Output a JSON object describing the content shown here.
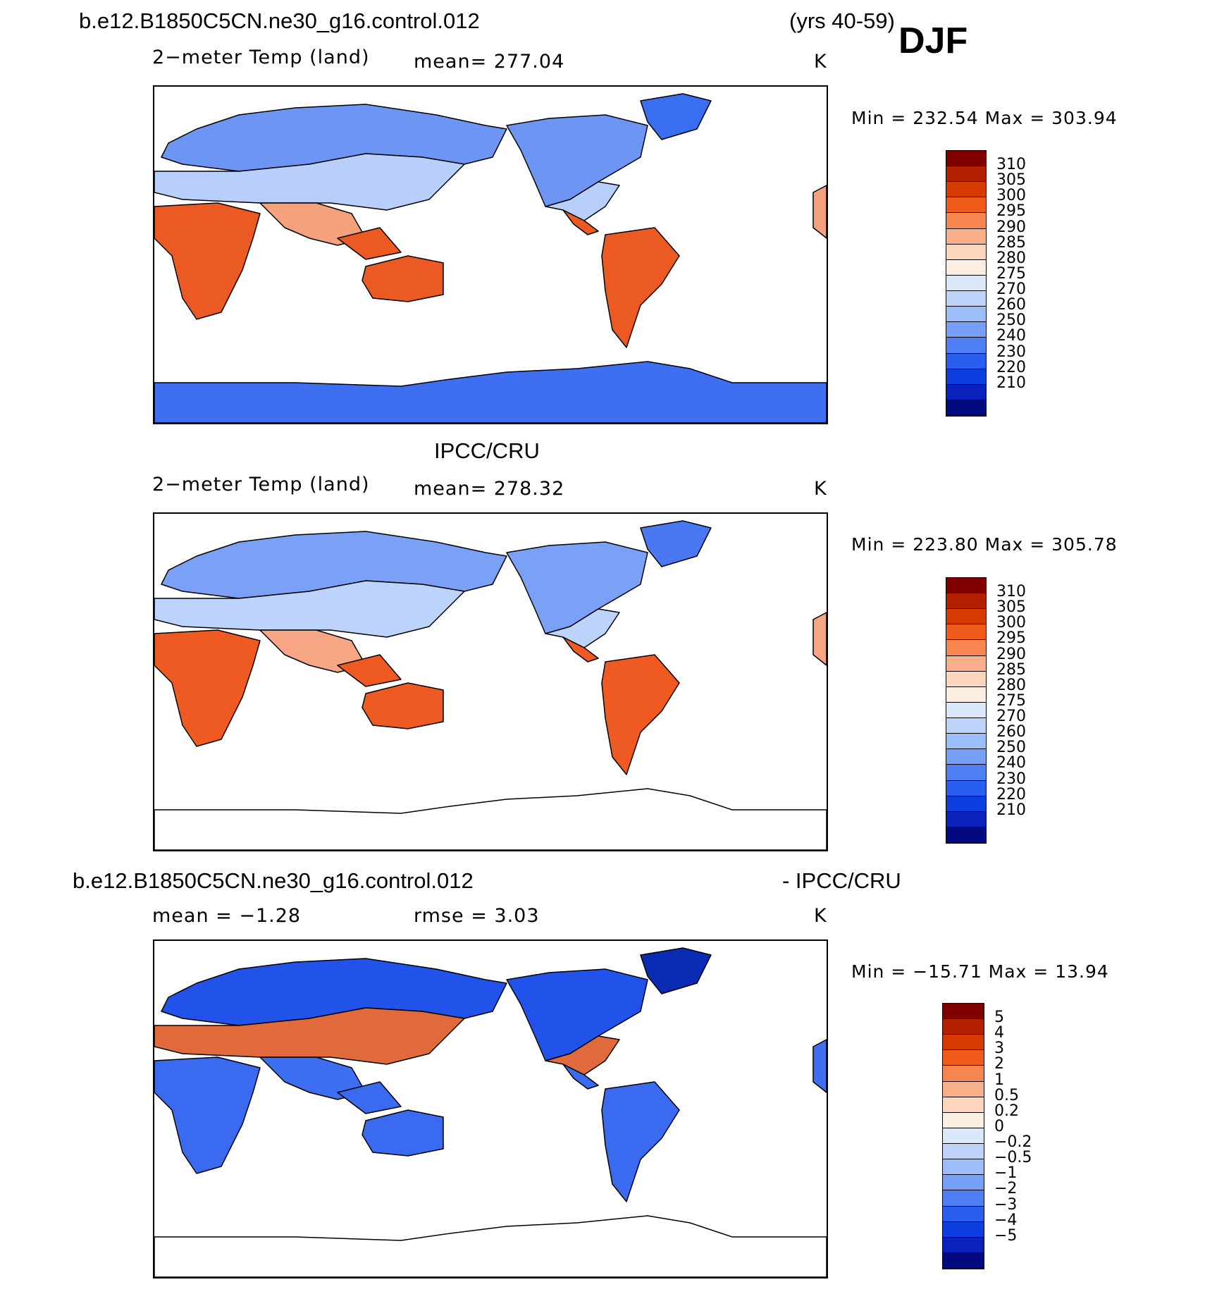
{
  "header": {
    "case_name": "b.e12.B1850C5CN.ne30_g16.control.012",
    "years": "(yrs 40-59)",
    "season": "DJF"
  },
  "panels": [
    {
      "id": "model",
      "title": "",
      "variable": "2−meter Temp (land)",
      "stat": "mean=  277.04",
      "units": "K",
      "minmax": "Min  =  232.54  Max  =  303.94",
      "palette": "abs"
    },
    {
      "id": "obs",
      "title": "IPCC/CRU",
      "variable": "2−meter Temp (land)",
      "stat": "mean=  278.32",
      "units": "K",
      "minmax": "Min  =  223.80  Max  =  305.78",
      "palette": "abs"
    },
    {
      "id": "diff",
      "title_left": "b.e12.B1850C5CN.ne30_g16.control.012",
      "title_right": "- IPCC/CRU",
      "variable": "mean  =    −1.28",
      "stat": "rmse  =      3.03",
      "units": "K",
      "minmax": "Min  =  −15.71  Max  =      13.94",
      "palette": "diff"
    }
  ],
  "colorbars": {
    "abs": {
      "colors": [
        "#800000",
        "#b22000",
        "#d63a00",
        "#f05a1a",
        "#f78550",
        "#f9b08a",
        "#fdd5bd",
        "#fdeee2",
        "#dbe8fa",
        "#bdd3fa",
        "#9bbdfa",
        "#76a0f7",
        "#4e7ff5",
        "#2a5ef0",
        "#0f3ee0",
        "#0a22bb",
        "#020a80"
      ],
      "labels": [
        "310",
        "305",
        "300",
        "295",
        "290",
        "285",
        "280",
        "275",
        "270",
        "260",
        "250",
        "240",
        "230",
        "220",
        "210"
      ]
    },
    "diff": {
      "colors": [
        "#800000",
        "#b22000",
        "#d63a00",
        "#f05a1a",
        "#f78550",
        "#f9b08a",
        "#fdd5bd",
        "#fdeee2",
        "#dbe8fa",
        "#bdd3fa",
        "#9bbdfa",
        "#76a0f7",
        "#4e7ff5",
        "#2a5ef0",
        "#0f3ee0",
        "#0a22bb",
        "#020a80"
      ],
      "labels": [
        "5",
        "4",
        "3",
        "2",
        "1",
        "0.5",
        "0.2",
        "0",
        "−0.2",
        "−0.5",
        "−1",
        "−2",
        "−3",
        "−4",
        "−5"
      ]
    }
  },
  "map_fill": {
    "model": {
      "north": "#6c95f4",
      "mid": "#b7cffa",
      "subtrop": "#f5a17c",
      "tropics": "#ec5a24",
      "antarctic": "#3d6ff0",
      "greenland": "#3a6ef1"
    },
    "obs": {
      "north": "#7aa1f6",
      "mid": "#bcd3fb",
      "subtrop": "#f6a684",
      "tropics": "#ee5a22",
      "antarctic": "#ffffff",
      "greenland": "#4a78f2"
    },
    "diff": {
      "north": "#2152ea",
      "mid": "#e06a3c",
      "subtrop": "#3e6ef1",
      "tropics": "#3a6af0",
      "antarctic": "#ffffff",
      "greenland": "#0a2bb3"
    }
  }
}
